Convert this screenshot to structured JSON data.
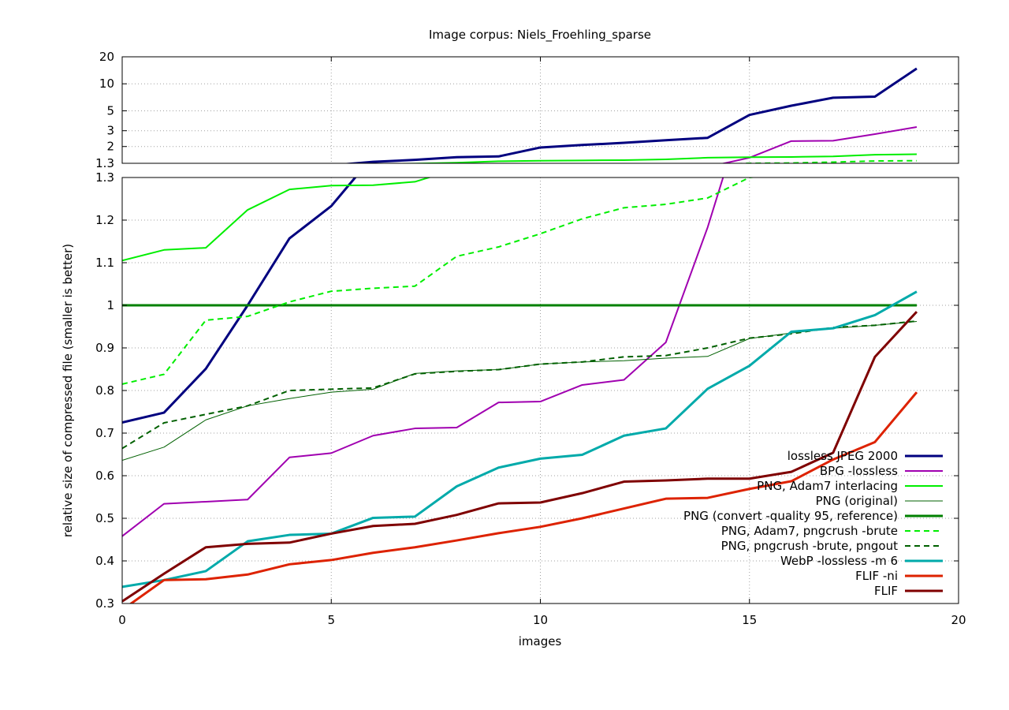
{
  "chart_data": {
    "type": "line",
    "title": "Image corpus: Niels_Froehling_sparse",
    "xlabel": "images",
    "ylabel": "relative size of compressed file (smaller is better)",
    "xlim": [
      0,
      20
    ],
    "x_ticks": [
      0,
      5,
      10,
      15,
      20
    ],
    "y_scale": "broken: linear 0.3–1.3 (lower panel), log 1.3–20 (upper panel)",
    "ylim_lower": [
      0.3,
      1.3
    ],
    "ylim_upper": [
      1.3,
      20
    ],
    "y_ticks_lower": [
      "0.3",
      "0.4",
      "0.5",
      "0.6",
      "0.7",
      "0.8",
      "0.9",
      "1",
      "1.1",
      "1.2",
      "1.3"
    ],
    "y_ticks_upper": [
      "1.3",
      "2",
      "3",
      "5",
      "10",
      "20"
    ],
    "grid": true,
    "legend_position": "bottom-right",
    "x": [
      0,
      1,
      2,
      3,
      4,
      5,
      6,
      7,
      8,
      9,
      10,
      11,
      12,
      13,
      14,
      15,
      16,
      17,
      18,
      19
    ],
    "series": [
      {
        "name": "lossless JPEG 2000",
        "color": "#00007f",
        "width": 3,
        "dash": "",
        "values": [
          0.725,
          0.748,
          0.851,
          1.0,
          1.157,
          1.233,
          1.35,
          1.42,
          1.52,
          1.55,
          1.95,
          2.08,
          2.2,
          2.35,
          2.5,
          4.5,
          5.7,
          7.0,
          7.2,
          14.8
        ]
      },
      {
        "name": "BPG -lossless",
        "color": "#a000b0",
        "width": 2,
        "dash": "",
        "values": [
          0.458,
          0.534,
          0.539,
          0.544,
          0.643,
          0.653,
          0.694,
          0.711,
          0.713,
          0.772,
          0.774,
          0.813,
          0.825,
          0.913,
          1.183,
          1.5,
          2.3,
          2.32,
          2.75,
          3.3
        ]
      },
      {
        "name": "PNG, Adam7 interlacing",
        "color": "#00ee00",
        "width": 2,
        "dash": "",
        "values": [
          1.105,
          1.13,
          1.135,
          1.224,
          1.272,
          1.281,
          1.282,
          1.29,
          1.32,
          1.37,
          1.39,
          1.4,
          1.41,
          1.44,
          1.5,
          1.52,
          1.53,
          1.55,
          1.62,
          1.64
        ]
      },
      {
        "name": "PNG (original)",
        "color": "#006000",
        "width": 1,
        "dash": "",
        "values": [
          0.636,
          0.667,
          0.731,
          0.764,
          0.781,
          0.796,
          0.803,
          0.84,
          0.846,
          0.849,
          0.862,
          0.867,
          0.87,
          0.876,
          0.88,
          0.922,
          0.935,
          0.946,
          0.953,
          0.962
        ]
      },
      {
        "name": "PNG (convert -quality 95, reference)",
        "color": "#008000",
        "width": 3,
        "dash": "",
        "values": [
          1,
          1,
          1,
          1,
          1,
          1,
          1,
          1,
          1,
          1,
          1,
          1,
          1,
          1,
          1,
          1,
          1,
          1,
          1,
          1
        ]
      },
      {
        "name": "PNG, Adam7, pngcrush -brute",
        "color": "#00ee00",
        "width": 2,
        "dash": "7 5",
        "values": [
          0.815,
          0.838,
          0.965,
          0.974,
          1.008,
          1.033,
          1.04,
          1.045,
          1.115,
          1.137,
          1.168,
          1.203,
          1.229,
          1.237,
          1.252,
          1.3,
          1.31,
          1.34,
          1.38,
          1.39
        ]
      },
      {
        "name": "PNG, pngcrush -brute, pngout",
        "color": "#006000",
        "width": 2,
        "dash": "7 5",
        "values": [
          0.664,
          0.724,
          0.744,
          0.764,
          0.8,
          0.803,
          0.806,
          0.839,
          0.845,
          0.849,
          0.862,
          0.867,
          0.879,
          0.882,
          0.9,
          0.923,
          0.933,
          0.948,
          0.953,
          0.963
        ]
      },
      {
        "name": "WebP -lossless -m 6",
        "color": "#00aaaa",
        "width": 3,
        "dash": "",
        "values": [
          0.339,
          0.355,
          0.376,
          0.446,
          0.461,
          0.464,
          0.501,
          0.504,
          0.575,
          0.619,
          0.64,
          0.649,
          0.694,
          0.711,
          0.804,
          0.858,
          0.938,
          0.946,
          0.977,
          1.032
        ]
      },
      {
        "name": "FLIF -ni",
        "color": "#dd2200",
        "width": 3,
        "dash": "",
        "values": [
          0.285,
          0.355,
          0.357,
          0.368,
          0.392,
          0.402,
          0.419,
          0.432,
          0.448,
          0.465,
          0.48,
          0.5,
          0.523,
          0.546,
          0.548,
          0.569,
          0.587,
          0.638,
          0.679,
          0.796
        ]
      },
      {
        "name": "FLIF",
        "color": "#7f0000",
        "width": 3,
        "dash": "",
        "values": [
          0.305,
          0.37,
          0.432,
          0.44,
          0.443,
          0.464,
          0.482,
          0.487,
          0.508,
          0.535,
          0.537,
          0.559,
          0.586,
          0.589,
          0.593,
          0.593,
          0.609,
          0.654,
          0.879,
          0.985
        ]
      }
    ]
  }
}
